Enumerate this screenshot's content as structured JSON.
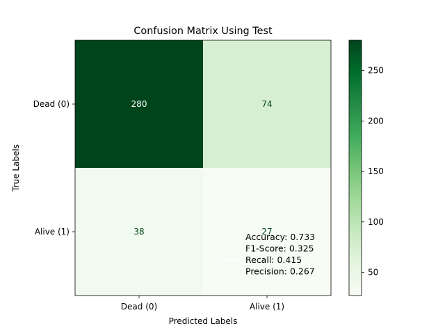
{
  "chart_data": {
    "type": "heatmap",
    "title": "Confusion Matrix Using Test",
    "xlabel": "Predicted Labels",
    "ylabel": "True Labels",
    "x_categories": [
      "Dead (0)",
      "Alive (1)"
    ],
    "y_categories": [
      "Dead (0)",
      "Alive (1)"
    ],
    "values": [
      [
        280,
        74
      ],
      [
        38,
        27
      ]
    ],
    "colormap": "Greens",
    "colorbar": {
      "min": 27,
      "max": 280,
      "ticks": [
        50,
        100,
        150,
        200,
        250
      ]
    },
    "annotation": [
      "Accuracy: 0.733",
      "F1-Score: 0.325",
      "Recall: 0.415",
      "Precision: 0.267"
    ]
  }
}
